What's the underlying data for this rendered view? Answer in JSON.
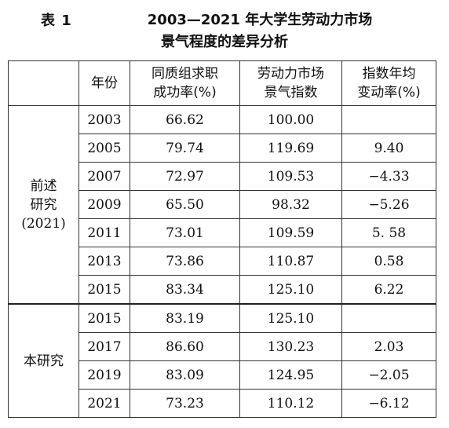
{
  "caption": {
    "label": "表 1",
    "title_line1": "2003—2021 年大学生劳动力市场",
    "title_line2": "景气程度的差异分析"
  },
  "table": {
    "headers": {
      "blank": "",
      "year": "年份",
      "rate_line1": "同质组求职",
      "rate_line2": "成功率(%)",
      "index_line1": "劳动力市场",
      "index_line2": "景气指数",
      "change_line1": "指数年均",
      "change_line2": "变动率(%)"
    },
    "groups": [
      {
        "label_line1": "前述",
        "label_line2": "研究",
        "label_line3": "(2021)",
        "rows": [
          {
            "year": "2003",
            "rate": "66.62",
            "index": "100.00",
            "change": ""
          },
          {
            "year": "2005",
            "rate": "79.74",
            "index": "119.69",
            "change": "9.40"
          },
          {
            "year": "2007",
            "rate": "72.97",
            "index": "109.53",
            "change": "−4.33"
          },
          {
            "year": "2009",
            "rate": "65.50",
            "index": "98.32",
            "change": "−5.26"
          },
          {
            "year": "2011",
            "rate": "73.01",
            "index": "109.59",
            "change": "5. 58"
          },
          {
            "year": "2013",
            "rate": "73.86",
            "index": "110.87",
            "change": "0.58"
          },
          {
            "year": "2015",
            "rate": "83.34",
            "index": "125.10",
            "change": "6.22"
          }
        ]
      },
      {
        "label_line1": "本研究",
        "rows": [
          {
            "year": "2015",
            "rate": "83.19",
            "index": "125.10",
            "change": ""
          },
          {
            "year": "2017",
            "rate": "86.60",
            "index": "130.23",
            "change": "2.03"
          },
          {
            "year": "2019",
            "rate": "83.09",
            "index": "124.95",
            "change": "−2.05"
          },
          {
            "year": "2021",
            "rate": "73.23",
            "index": "110.12",
            "change": "−6.12"
          }
        ]
      }
    ]
  }
}
